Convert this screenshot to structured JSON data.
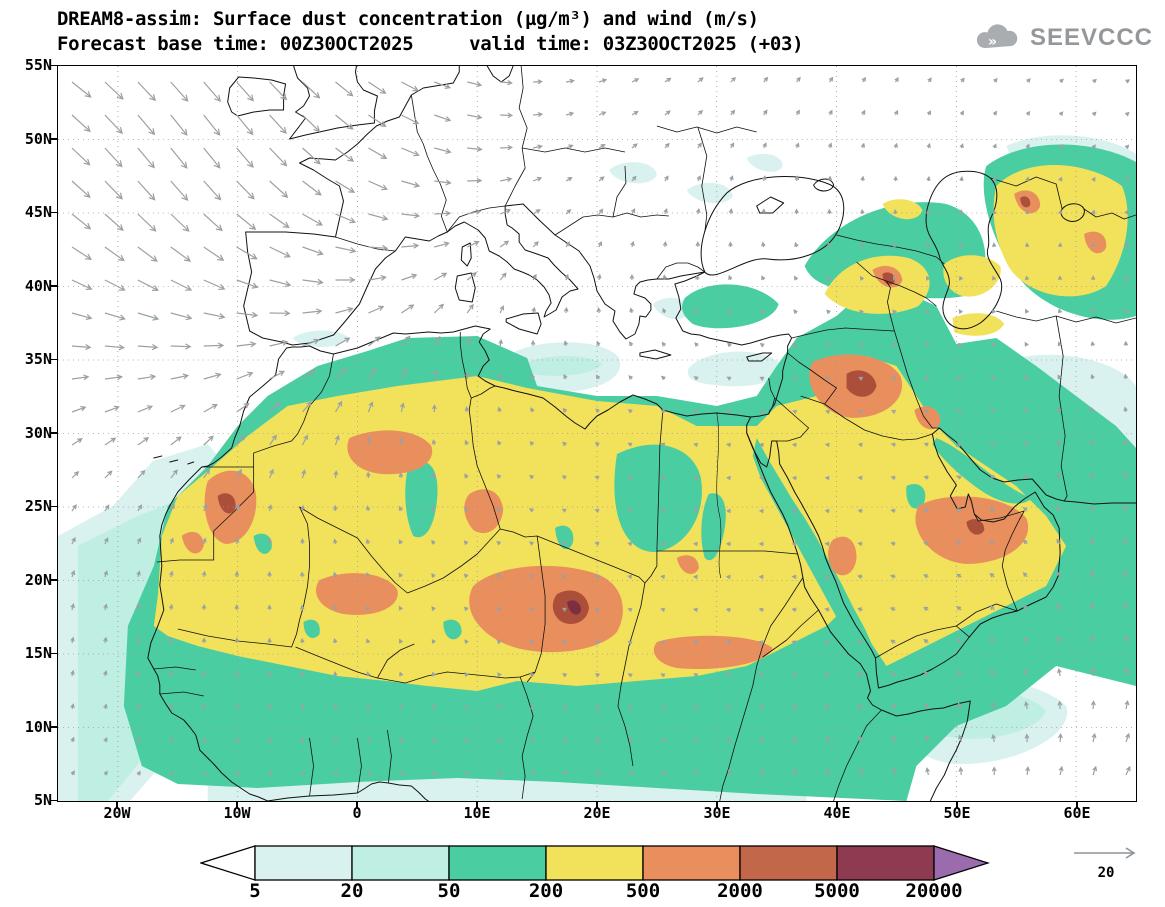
{
  "header": {
    "title_line1": "DREAM8-assim: Surface dust concentration (µg/m³) and wind (m/s)",
    "title_line2": "Forecast base time: 00Z30OCT2025     valid time: 03Z30OCT2025 (+03)",
    "logo_text": "SEEVCCC"
  },
  "axes": {
    "lat_labels": [
      "55N",
      "50N",
      "45N",
      "40N",
      "35N",
      "30N",
      "25N",
      "20N",
      "15N",
      "10N",
      "5N"
    ],
    "lon_labels": [
      "20W",
      "10W",
      "0",
      "10E",
      "20E",
      "30E",
      "40E",
      "50E",
      "60E"
    ]
  },
  "colorbar": {
    "values": [
      "5",
      "20",
      "50",
      "200",
      "500",
      "2000",
      "5000",
      "20000"
    ],
    "colors": [
      "#ffffff",
      "#d9f2ef",
      "#bfeee3",
      "#4bcda2",
      "#f2e15b",
      "#e98f5e",
      "#c2674a",
      "#8e3a50",
      "#9a6cad"
    ]
  },
  "wind_reference": {
    "label": "20"
  },
  "chart_data": {
    "type": "heatmap",
    "model": "DREAM8-assim",
    "variable": "Surface dust concentration",
    "units": "µg/m³",
    "wind_units": "m/s",
    "forecast_base_time": "00Z30OCT2025",
    "valid_time": "03Z30OCT2025",
    "lead": "+03",
    "x_axis": {
      "label": "longitude",
      "ticks": [
        "20W",
        "10W",
        "0",
        "10E",
        "20E",
        "30E",
        "40E",
        "50E",
        "60E"
      ],
      "range": [
        "25W",
        "65E"
      ]
    },
    "y_axis": {
      "label": "latitude",
      "ticks": [
        "55N",
        "50N",
        "45N",
        "40N",
        "35N",
        "30N",
        "25N",
        "20N",
        "15N",
        "10N",
        "5N"
      ],
      "range": [
        "5N",
        "55N"
      ]
    },
    "grid": "dotted, 5° latitude / 10° longitude",
    "legend_position": "bottom",
    "color_scale": {
      "levels_ug_m3": [
        5,
        20,
        50,
        200,
        500,
        2000,
        5000,
        20000
      ],
      "colors": [
        "#ffffff",
        "#d9f2ef",
        "#bfeee3",
        "#4bcda2",
        "#f2e15b",
        "#e98f5e",
        "#c2674a",
        "#8e3a50",
        "#9a6cad"
      ]
    },
    "wind_reference_ms": 20,
    "dust_maxima_approx": [
      {
        "location": "Chad (~18E, 18N)",
        "band_ug_m3": "2000-5000"
      },
      {
        "location": "Iraq / N Saudi border (~41E, 33N)",
        "band_ug_m3": "2000-5000"
      },
      {
        "location": "Mauritania (~11W, 25N)",
        "band_ug_m3": "2000"
      },
      {
        "location": "Central Saudi Arabia (~47E, 23N)",
        "band_ug_m3": "2000"
      },
      {
        "location": "Armenia / E Turkey (~44E, 40N)",
        "band_ug_m3": "2000"
      },
      {
        "location": "Niger / Mali Sahel belt",
        "band_ug_m3": "500-2000"
      }
    ],
    "broad_pattern": "Yellow (200-500) core over Sahara and Arabian Peninsula surrounded by teal (50-200); light cyan fringes over E Atlantic, Mediterranean, Caspian/Iran and Gulf of Aden"
  }
}
